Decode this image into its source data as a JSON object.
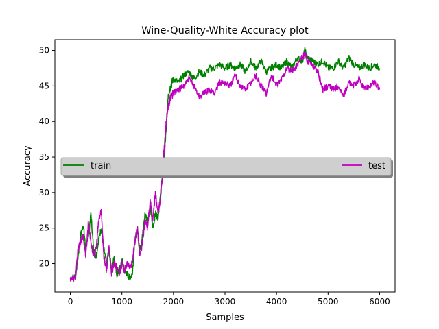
{
  "chart_data": {
    "type": "line",
    "title": "Wine-Quality-White Accuracy plot",
    "xlabel": "Samples",
    "ylabel": "Accuracy",
    "xlim": [
      -300,
      6300
    ],
    "ylim": [
      16,
      51.5
    ],
    "xticks": [
      0,
      1000,
      2000,
      3000,
      4000,
      5000,
      6000
    ],
    "yticks": [
      20,
      25,
      30,
      35,
      40,
      45,
      50
    ],
    "grid": false,
    "legend": {
      "placement": "center",
      "entries": [
        "train",
        "test"
      ]
    },
    "series": [
      {
        "name": "train",
        "color": "#008000",
        "x": [
          0,
          100,
          150,
          200,
          250,
          300,
          350,
          400,
          450,
          500,
          550,
          600,
          650,
          700,
          750,
          800,
          850,
          900,
          950,
          1000,
          1050,
          1100,
          1150,
          1200,
          1250,
          1300,
          1350,
          1400,
          1450,
          1500,
          1550,
          1600,
          1650,
          1700,
          1750,
          1800,
          1830,
          1860,
          1900,
          1950,
          2000,
          2100,
          2200,
          2300,
          2400,
          2500,
          2600,
          2700,
          2800,
          2900,
          3000,
          3100,
          3200,
          3300,
          3400,
          3500,
          3600,
          3700,
          3800,
          3900,
          4000,
          4100,
          4200,
          4300,
          4400,
          4500,
          4550,
          4600,
          4700,
          4800,
          4900,
          5000,
          5100,
          5200,
          5300,
          5400,
          5500,
          5600,
          5700,
          5800,
          5900,
          6000
        ],
        "values": [
          18,
          18.2,
          21,
          24,
          25.5,
          22,
          24,
          27,
          22,
          21,
          23.5,
          25,
          22,
          20,
          22,
          19,
          21,
          18.5,
          19,
          20.5,
          19,
          18.5,
          18,
          18.5,
          23,
          25,
          22,
          24,
          27,
          26,
          28,
          25,
          27,
          26.5,
          30,
          33,
          36,
          39,
          44,
          45,
          46,
          45.5,
          46.5,
          47,
          46,
          47,
          46.5,
          47.5,
          47.5,
          48,
          47.5,
          48,
          47.5,
          48,
          47,
          48.5,
          47.5,
          48.5,
          47,
          47.5,
          48,
          47.5,
          48.5,
          47.5,
          49,
          48.5,
          50,
          49,
          48.5,
          48,
          48.5,
          47.5,
          47.5,
          48.5,
          47.5,
          49,
          48,
          47.5,
          48,
          47.5,
          48,
          47.5
        ]
      },
      {
        "name": "test",
        "color": "#bf00bf",
        "x": [
          0,
          100,
          150,
          200,
          250,
          300,
          350,
          400,
          450,
          500,
          550,
          600,
          650,
          700,
          750,
          800,
          850,
          900,
          950,
          1000,
          1050,
          1100,
          1150,
          1200,
          1250,
          1300,
          1350,
          1400,
          1450,
          1500,
          1550,
          1600,
          1650,
          1700,
          1750,
          1800,
          1830,
          1860,
          1900,
          1950,
          2000,
          2100,
          2200,
          2300,
          2400,
          2500,
          2600,
          2700,
          2800,
          2900,
          3000,
          3100,
          3200,
          3300,
          3400,
          3500,
          3600,
          3700,
          3800,
          3900,
          4000,
          4100,
          4200,
          4300,
          4400,
          4500,
          4550,
          4600,
          4700,
          4800,
          4900,
          5000,
          5100,
          5200,
          5300,
          5400,
          5500,
          5600,
          5700,
          5800,
          5900,
          6000
        ],
        "values": [
          17.8,
          18,
          22,
          23,
          24,
          21,
          26,
          23,
          21,
          22,
          26,
          27.5,
          21,
          19,
          22.5,
          18.5,
          20,
          19.5,
          18.5,
          20,
          19,
          20,
          19.5,
          20,
          23,
          25,
          21,
          23,
          26,
          25,
          29,
          26,
          30,
          27,
          29,
          34,
          37,
          40,
          42,
          43.5,
          44,
          44.5,
          45,
          46,
          45,
          43.5,
          44,
          44.5,
          44,
          45.5,
          45.5,
          45,
          46.5,
          45,
          44.5,
          45.5,
          46.5,
          45,
          44,
          46.5,
          45,
          46,
          47.5,
          47,
          48,
          49,
          49.5,
          48.5,
          48,
          47,
          44.5,
          45,
          44.5,
          45,
          43.5,
          45.5,
          45,
          46,
          44.5,
          45,
          45.5,
          44.5
        ]
      }
    ]
  }
}
